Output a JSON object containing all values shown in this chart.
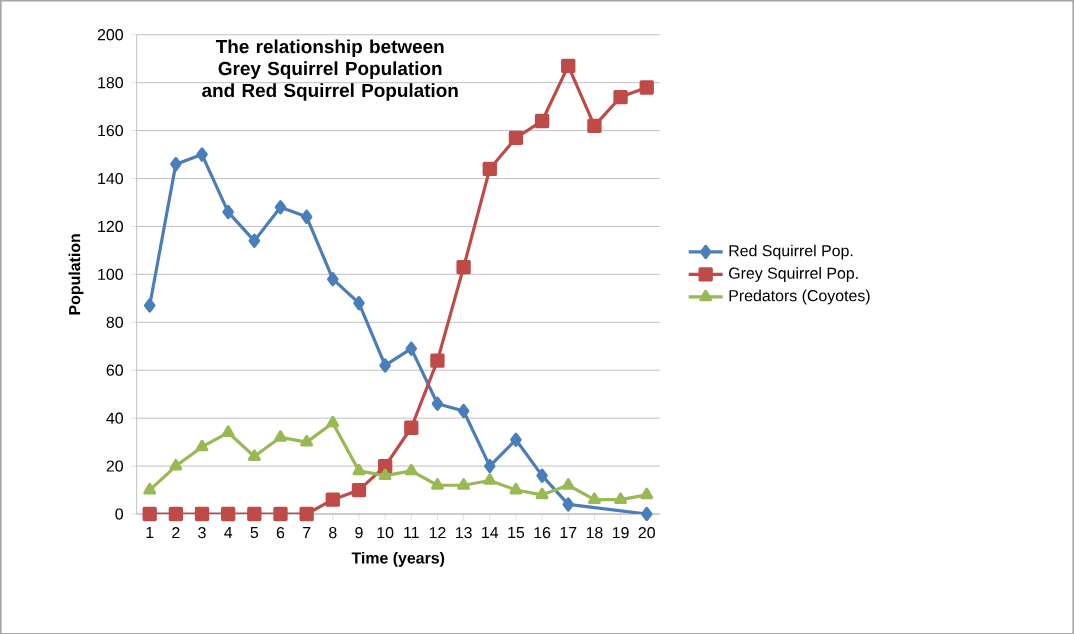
{
  "chart_data": {
    "type": "line",
    "title": "The relationship between Grey Squirrel Population and Red Squirrel Population",
    "xlabel": "Time (years)",
    "ylabel": "Population",
    "categories": [
      "1",
      "2",
      "3",
      "4",
      "5",
      "6",
      "7",
      "8",
      "9",
      "10",
      "11",
      "12",
      "13",
      "14",
      "15",
      "16",
      "17",
      "18",
      "19",
      "20"
    ],
    "series": [
      {
        "name": "Red Squirrel Pop.",
        "color": "#4a7ebb",
        "marker": "diamond",
        "values": [
          87,
          146,
          150,
          126,
          114,
          128,
          124,
          98,
          88,
          62,
          69,
          46,
          43,
          20,
          31,
          16,
          4,
          null,
          null,
          0
        ]
      },
      {
        "name": "Grey Squirrel Pop.",
        "color": "#be4b48",
        "marker": "square",
        "values": [
          0,
          0,
          0,
          0,
          0,
          0,
          0,
          6,
          10,
          20,
          36,
          64,
          103,
          144,
          157,
          164,
          187,
          162,
          174,
          178
        ]
      },
      {
        "name": "Predators (Coyotes)",
        "color": "#98b954",
        "marker": "triangle",
        "values": [
          10,
          20,
          28,
          34,
          24,
          32,
          30,
          38,
          18,
          16,
          18,
          12,
          12,
          14,
          10,
          8,
          12,
          6,
          6,
          8
        ]
      }
    ],
    "ylim": [
      0,
      200
    ],
    "yticks": [
      0,
      20,
      40,
      60,
      80,
      100,
      120,
      140,
      160,
      180,
      200
    ],
    "grid": "y",
    "legend": "right"
  }
}
